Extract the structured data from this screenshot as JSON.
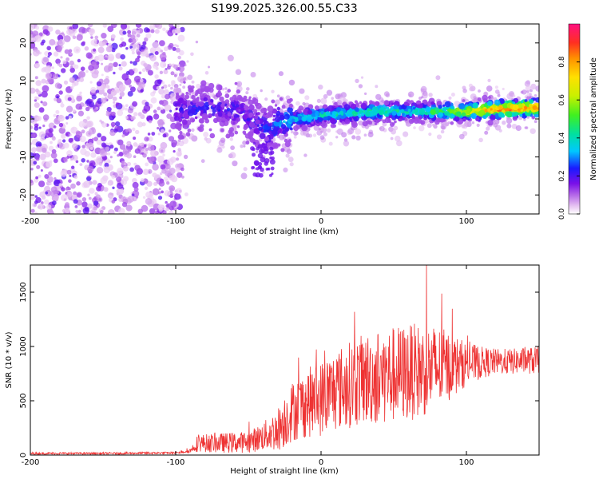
{
  "title": "S199.2025.326.00.55.C33",
  "chart_data": [
    {
      "type": "heatmap",
      "xlabel": "Height of straight line (km)",
      "ylabel": "Frequency (Hz)",
      "xlim": [
        -200,
        150
      ],
      "ylim": [
        -25,
        25
      ],
      "x_ticks": [
        "-200",
        "-100",
        "0",
        "100"
      ],
      "x_tick_values": [
        -200,
        -100,
        0,
        100
      ],
      "y_ticks": [
        "20",
        "10",
        "0",
        "-10",
        "-20"
      ],
      "y_tick_values": [
        20,
        10,
        0,
        -10,
        -20
      ],
      "description_points": {
        "ridge_x": [
          -100,
          -80,
          -60,
          -45,
          -35,
          -30,
          -20,
          0,
          20,
          40,
          60,
          80,
          100,
          120,
          150
        ],
        "ridge_freq": [
          2,
          3,
          2,
          -1,
          -3,
          -1,
          0,
          1,
          1.5,
          2,
          2,
          2,
          2,
          2.5,
          3
        ],
        "ridge_amplitude": [
          0.2,
          0.2,
          0.2,
          0.2,
          0.25,
          0.3,
          0.35,
          0.4,
          0.4,
          0.45,
          0.4,
          0.5,
          0.65,
          0.85,
          0.85
        ]
      },
      "colorbar": {
        "label": "Normalized spectral amplitude",
        "range": [
          0,
          1
        ],
        "ticks": [
          "0.0",
          "0.2",
          "0.4",
          "0.6",
          "0.8"
        ],
        "tick_values": [
          0,
          0.2,
          0.4,
          0.6,
          0.8
        ]
      }
    },
    {
      "type": "line",
      "xlabel": "Height of straight line (km)",
      "ylabel": "SNR (10 * v/v)",
      "xlim": [
        -200,
        150
      ],
      "ylim": [
        0,
        1750
      ],
      "x_ticks": [
        "-200",
        "-100",
        "0",
        "100"
      ],
      "x_tick_values": [
        -200,
        -100,
        0,
        100
      ],
      "y_ticks": [
        "0",
        "500",
        "1000",
        "1500"
      ],
      "y_tick_values": [
        0,
        500,
        1000,
        1500
      ],
      "series": [
        {
          "name": "SNR",
          "color": "#ee3333",
          "envelope_x": [
            -200,
            -150,
            -100,
            -90,
            -85,
            -70,
            -50,
            -40,
            -30,
            -25,
            -20,
            -10,
            0,
            10,
            20,
            30,
            40,
            50,
            60,
            70,
            80,
            90,
            100,
            110,
            120,
            130,
            140,
            150
          ],
          "envelope_mean": [
            15,
            15,
            20,
            40,
            110,
            110,
            120,
            170,
            230,
            320,
            400,
            480,
            520,
            600,
            650,
            700,
            720,
            740,
            760,
            780,
            800,
            820,
            840,
            850,
            860,
            860,
            870,
            870
          ],
          "envelope_spread": [
            10,
            10,
            10,
            20,
            80,
            90,
            100,
            130,
            200,
            250,
            280,
            320,
            350,
            380,
            400,
            420,
            450,
            450,
            450,
            430,
            400,
            300,
            200,
            150,
            120,
            120,
            120,
            130
          ]
        }
      ]
    }
  ]
}
